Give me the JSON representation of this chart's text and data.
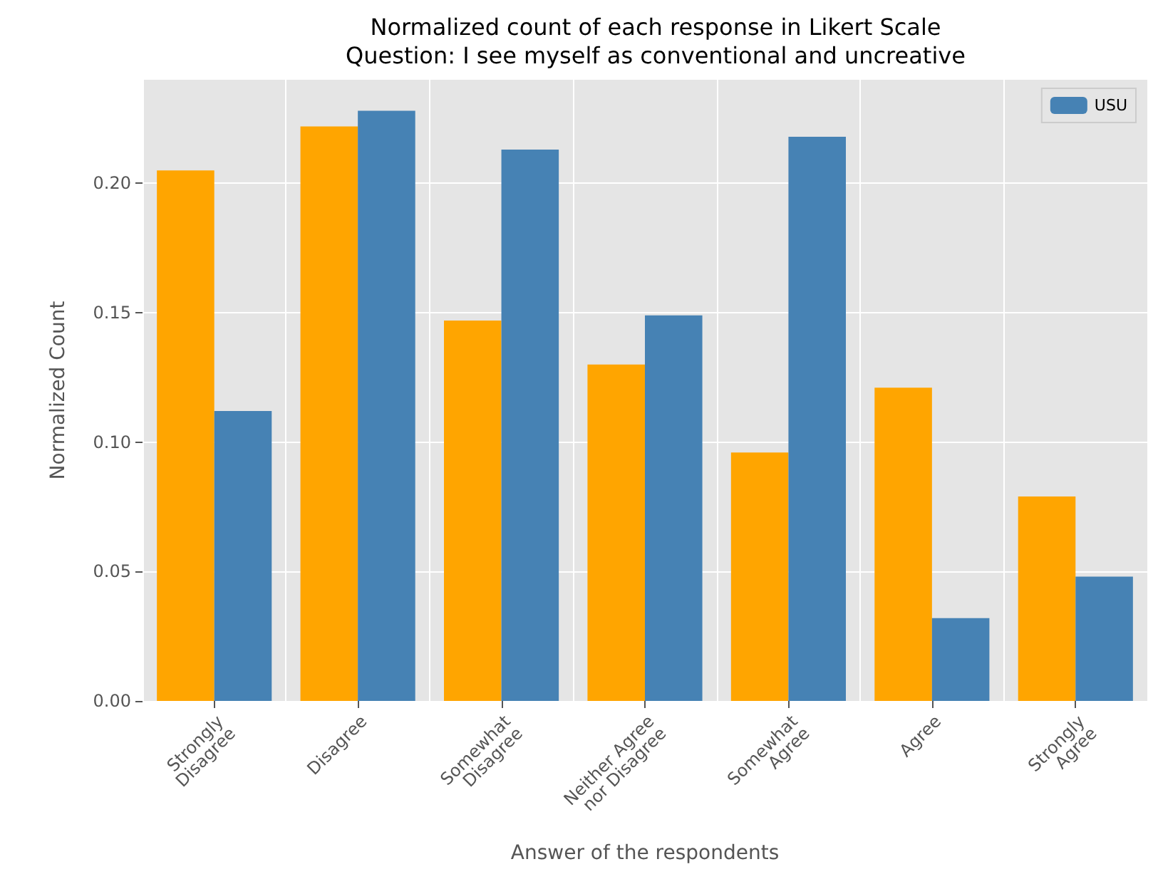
{
  "chart_data": {
    "type": "bar",
    "title": "Normalized count of each response in Likert Scale",
    "subtitle": "Question: I see myself as conventional and uncreative",
    "xlabel": "Answer of the respondents",
    "ylabel": "Normalized Count",
    "categories": [
      "Strongly\nDisagree",
      "Disagree",
      "Somewhat\nDisagree",
      "Neither Agree\nnor Disagree",
      "Somewhat\nAgree",
      "Agree",
      "Strongly\nAgree"
    ],
    "series": [
      {
        "color": "#ffa500",
        "values": [
          0.205,
          0.222,
          0.147,
          0.13,
          0.096,
          0.121,
          0.079
        ]
      },
      {
        "name": "USU",
        "color": "#4682b4",
        "values": [
          0.112,
          0.228,
          0.213,
          0.149,
          0.218,
          0.032,
          0.048
        ]
      }
    ],
    "ylim": [
      0,
      0.24
    ],
    "yticks": [
      {
        "value": 0,
        "label": "0.00"
      },
      {
        "value": 0.05,
        "label": "0.05"
      },
      {
        "value": 0.1,
        "label": "0.10"
      },
      {
        "value": 0.15,
        "label": "0.15"
      },
      {
        "value": 0.2,
        "label": "0.20"
      }
    ],
    "grid": true,
    "legend": "top right"
  }
}
